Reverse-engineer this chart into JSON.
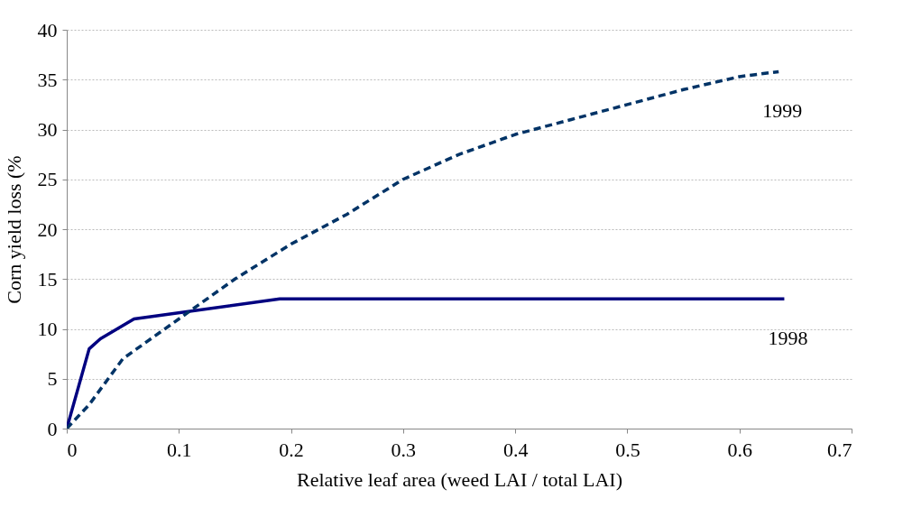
{
  "chart_data": {
    "type": "line",
    "xlabel": "Relative leaf area (weed LAI / total LAI)",
    "ylabel": "Corn yield loss (%",
    "xlim": [
      0,
      0.7
    ],
    "xticks": [
      0,
      0.1,
      0.2,
      0.3,
      0.4,
      0.5,
      0.6,
      0.7
    ],
    "ylim": [
      0,
      40
    ],
    "yticks": [
      0,
      5,
      10,
      15,
      20,
      25,
      30,
      35,
      40
    ],
    "grid": "y",
    "legend": false,
    "marker": "none",
    "series": [
      {
        "name": "1998",
        "color": "#000080",
        "line_style": "solid",
        "x": [
          0,
          0.02,
          0.03,
          0.06,
          0.19,
          0.64
        ],
        "values": [
          0,
          8,
          9,
          11,
          13,
          13
        ]
      },
      {
        "name": "1999",
        "color": "#003366",
        "line_style": "dashed",
        "x": [
          0,
          0.02,
          0.05,
          0.1,
          0.15,
          0.2,
          0.25,
          0.3,
          0.35,
          0.4,
          0.45,
          0.5,
          0.55,
          0.6,
          0.635
        ],
        "values": [
          0,
          2.4,
          7,
          11,
          15,
          18.5,
          21.5,
          25,
          27.5,
          29.5,
          31,
          32.5,
          34,
          35.3,
          35.8
        ]
      }
    ]
  }
}
